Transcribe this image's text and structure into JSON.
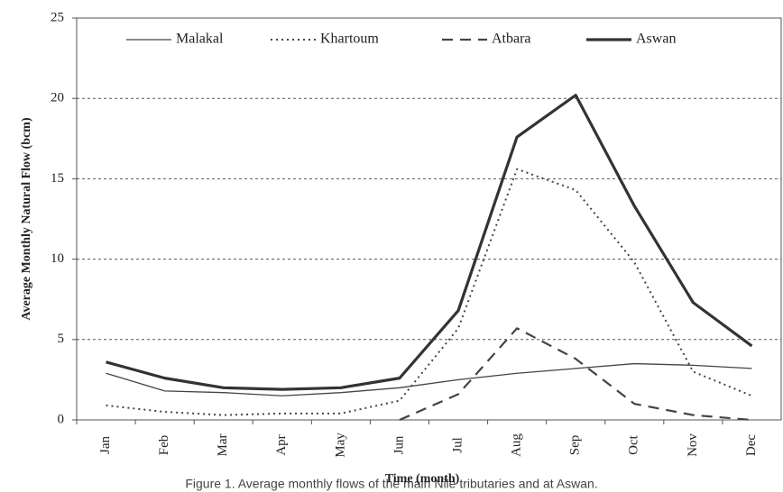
{
  "chart_data": {
    "type": "line",
    "xlabel": "Time (month)",
    "ylabel": "Average Monthly Natural Flow (bcm)",
    "caption": "Figure 1. Average monthly flows of the main Nile tributaries and at Aswan.",
    "categories": [
      "Jan",
      "Feb",
      "Mar",
      "Apr",
      "May",
      "Jun",
      "Jul",
      "Aug",
      "Sep",
      "Oct",
      "Nov",
      "Dec"
    ],
    "series": [
      {
        "name": "Malakal",
        "color": "#444444",
        "line_style": "solid",
        "line_width": 1.3,
        "values": [
          2.9,
          1.8,
          1.7,
          1.5,
          1.7,
          2.0,
          2.5,
          2.9,
          3.2,
          3.5,
          3.4,
          3.2
        ]
      },
      {
        "name": "Khartoum",
        "color": "#444444",
        "line_style": "dotted",
        "line_width": 2,
        "values": [
          0.9,
          0.5,
          0.3,
          0.4,
          0.4,
          1.2,
          5.7,
          15.6,
          14.3,
          9.8,
          3.0,
          1.5
        ]
      },
      {
        "name": "Atbara",
        "color": "#444444",
        "line_style": "dashed",
        "line_width": 2.2,
        "values": [
          null,
          null,
          null,
          null,
          null,
          0.0,
          1.6,
          5.7,
          3.8,
          1.0,
          0.3,
          0.0
        ]
      },
      {
        "name": "Aswan",
        "color": "#333333",
        "line_style": "solid",
        "line_width": 3.2,
        "values": [
          3.6,
          2.6,
          2.0,
          1.9,
          2.0,
          2.6,
          6.8,
          17.6,
          20.2,
          13.3,
          7.3,
          4.6
        ]
      }
    ],
    "ylim": [
      0,
      25
    ],
    "yticks": [
      0,
      5,
      10,
      15,
      20,
      25
    ],
    "grid": true
  }
}
